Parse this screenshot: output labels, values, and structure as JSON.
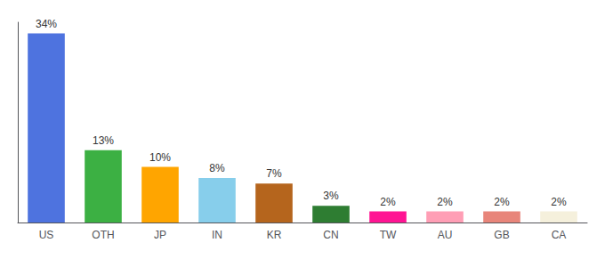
{
  "chart_data": {
    "type": "bar",
    "categories": [
      "US",
      "OTH",
      "JP",
      "IN",
      "KR",
      "CN",
      "TW",
      "AU",
      "GB",
      "CA"
    ],
    "values": [
      34,
      13,
      10,
      8,
      7,
      3,
      2,
      2,
      2,
      2
    ],
    "value_labels": [
      "34%",
      "13%",
      "10%",
      "8%",
      "7%",
      "3%",
      "2%",
      "2%",
      "2%",
      "2%"
    ],
    "colors": [
      "#4e73df",
      "#3cb043",
      "#ffa500",
      "#87ceeb",
      "#b5651d",
      "#2e7d32",
      "#ff1493",
      "#ff9eb5",
      "#e8857a",
      "#f5f0dc"
    ],
    "ylim": [
      0,
      36
    ],
    "data_labels": true,
    "tick_labels": "x",
    "grid": false
  }
}
